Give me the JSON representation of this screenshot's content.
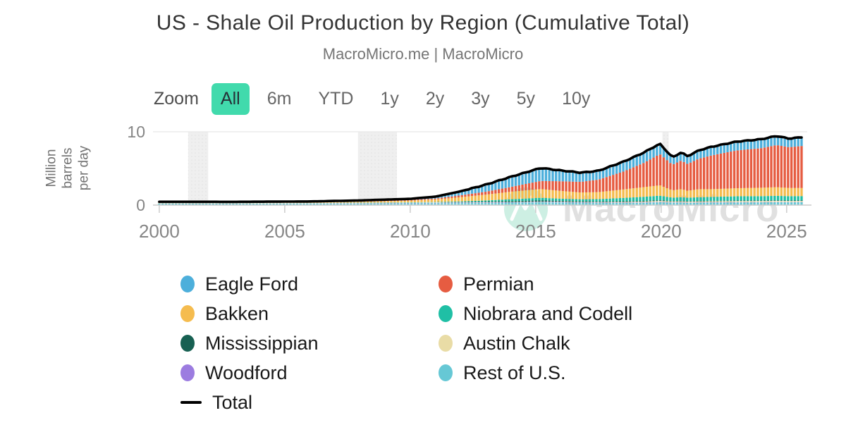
{
  "header": {
    "title": "US - Shale Oil Production by Region (Cumulative Total)",
    "subtitle": "MacroMicro.me | MacroMicro"
  },
  "toolbar": {
    "zoom_label": "Zoom",
    "buttons": [
      {
        "label": "All",
        "selected": true
      },
      {
        "label": "6m",
        "selected": false
      },
      {
        "label": "YTD",
        "selected": false
      },
      {
        "label": "1y",
        "selected": false
      },
      {
        "label": "2y",
        "selected": false
      },
      {
        "label": "3y",
        "selected": false
      },
      {
        "label": "5y",
        "selected": false
      },
      {
        "label": "10y",
        "selected": false
      }
    ]
  },
  "watermark": {
    "text": "MacroMicro",
    "logo": "macromicro-mountain-logo"
  },
  "colors": {
    "accent_selected": "#41DAAC",
    "axis_text": "#858585",
    "grid": "#e8e8e8",
    "axis_line": "#cccccc",
    "band_fill": "#efefef",
    "band_dot": "#e2e2e2",
    "watermark_text": "#E0E0E0",
    "watermark_circle": "#CDEFE3",
    "total_line": "#000000"
  },
  "chart_data": {
    "type": "bar",
    "subtype": "stacked-monthly-columns-with-total-line",
    "title": "US - Shale Oil Production by Region (Cumulative Total)",
    "ylabel_lines": [
      "Million",
      "barrels",
      "per day"
    ],
    "ylim": [
      0,
      10
    ],
    "y_ticks": [
      0,
      10
    ],
    "xlim": [
      1999.75,
      2025.82
    ],
    "x_ticks": [
      2000,
      2005,
      2010,
      2015,
      2020,
      2025
    ],
    "grid": "horizontal-only",
    "legend_position": "bottom",
    "stacking": "first-series-on-top",
    "bar_step_years": 0.134,
    "x_end": 2025.65,
    "anchors_x": [
      2000,
      2003,
      2006,
      2008,
      2010,
      2011,
      2012,
      2013,
      2014,
      2015.2,
      2016,
      2016.8,
      2017.5,
      2018.5,
      2019.3,
      2019.95,
      2020.45,
      2020.8,
      2021.05,
      2021.5,
      2022,
      2023,
      2024,
      2024.6,
      2025.1,
      2025.65
    ],
    "series": [
      {
        "name": "Eagle Ford",
        "color": "#4DAFDB",
        "values": [
          0,
          0,
          0,
          0.01,
          0.03,
          0.13,
          0.42,
          0.83,
          1.25,
          1.65,
          1.35,
          1.13,
          1.08,
          1.22,
          1.28,
          1.3,
          0.85,
          1.0,
          0.92,
          1.02,
          1.05,
          1.08,
          1.1,
          1.12,
          1.05,
          1.08
        ]
      },
      {
        "name": "Permian",
        "color": "#E65C41",
        "values": [
          0.03,
          0.03,
          0.03,
          0.04,
          0.08,
          0.13,
          0.25,
          0.4,
          0.65,
          1.1,
          1.32,
          1.45,
          1.7,
          2.45,
          3.3,
          4.25,
          3.5,
          3.9,
          3.65,
          4.15,
          4.6,
          5.15,
          5.4,
          5.75,
          5.55,
          5.75
        ]
      },
      {
        "name": "Bakken",
        "color": "#F5BC4F",
        "values": [
          0.02,
          0.02,
          0.05,
          0.13,
          0.24,
          0.34,
          0.58,
          0.79,
          1.02,
          1.2,
          1.05,
          0.92,
          0.95,
          1.15,
          1.32,
          1.42,
          1.0,
          1.1,
          0.95,
          1.1,
          1.05,
          1.1,
          1.15,
          1.18,
          1.12,
          1.1
        ]
      },
      {
        "name": "Niobrara and Codell",
        "color": "#1FBFA5",
        "values": [
          0.01,
          0.01,
          0.02,
          0.03,
          0.05,
          0.06,
          0.09,
          0.16,
          0.25,
          0.35,
          0.3,
          0.28,
          0.32,
          0.45,
          0.55,
          0.62,
          0.45,
          0.5,
          0.47,
          0.5,
          0.53,
          0.58,
          0.6,
          0.62,
          0.6,
          0.6
        ]
      },
      {
        "name": "Mississippian",
        "color": "#176052",
        "values": [
          0,
          0,
          0,
          0.01,
          0.01,
          0.02,
          0.04,
          0.08,
          0.13,
          0.16,
          0.12,
          0.1,
          0.09,
          0.1,
          0.1,
          0.09,
          0.07,
          0.07,
          0.07,
          0.07,
          0.07,
          0.07,
          0.06,
          0.06,
          0.06,
          0.06
        ]
      },
      {
        "name": "Austin Chalk",
        "color": "#E9DCA6",
        "values": [
          0.05,
          0.04,
          0.03,
          0.03,
          0.03,
          0.03,
          0.03,
          0.03,
          0.03,
          0.04,
          0.04,
          0.04,
          0.05,
          0.08,
          0.11,
          0.14,
          0.12,
          0.13,
          0.12,
          0.13,
          0.14,
          0.15,
          0.15,
          0.16,
          0.15,
          0.15
        ]
      },
      {
        "name": "Woodford",
        "color": "#9C7CE0",
        "values": [
          0,
          0.01,
          0.02,
          0.03,
          0.04,
          0.05,
          0.06,
          0.06,
          0.06,
          0.06,
          0.06,
          0.05,
          0.05,
          0.05,
          0.05,
          0.05,
          0.04,
          0.04,
          0.04,
          0.04,
          0.04,
          0.04,
          0.04,
          0.04,
          0.04,
          0.04
        ]
      },
      {
        "name": "Rest of U.S.",
        "color": "#66C8D5",
        "values": [
          0.22,
          0.21,
          0.22,
          0.23,
          0.25,
          0.26,
          0.28,
          0.3,
          0.33,
          0.38,
          0.36,
          0.33,
          0.31,
          0.3,
          0.32,
          0.38,
          0.33,
          0.34,
          0.31,
          0.33,
          0.34,
          0.36,
          0.37,
          0.38,
          0.37,
          0.38
        ]
      }
    ],
    "total": {
      "name": "Total",
      "color": "#000000",
      "values": [
        0.33,
        0.32,
        0.37,
        0.51,
        0.73,
        1.02,
        1.75,
        2.65,
        3.72,
        4.94,
        4.6,
        4.3,
        4.55,
        5.8,
        7.03,
        8.25,
        6.36,
        7.08,
        6.53,
        7.34,
        7.82,
        8.53,
        8.87,
        9.31,
        8.94,
        9.16
      ]
    },
    "recession_bands": [
      {
        "from": 2001.15,
        "to": 2001.95
      },
      {
        "from": 2007.92,
        "to": 2009.47
      },
      {
        "from": 2020.05,
        "to": 2020.3
      }
    ]
  }
}
